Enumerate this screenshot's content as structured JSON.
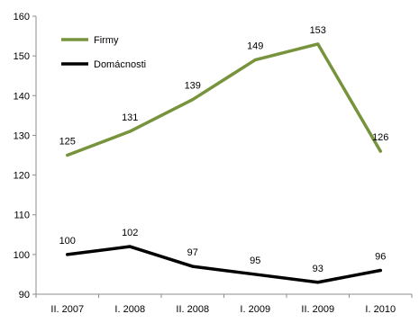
{
  "chart_data": {
    "type": "line",
    "categories": [
      "II. 2007",
      "I. 2008",
      "II. 2008",
      "I. 2009",
      "II. 2009",
      "I. 2010"
    ],
    "series": [
      {
        "name": "Firmy",
        "values": [
          125,
          131,
          139,
          149,
          153,
          126
        ],
        "color": "#77933c"
      },
      {
        "name": "Domácnosti",
        "values": [
          100,
          102,
          97,
          95,
          93,
          96
        ],
        "color": "#000000"
      }
    ],
    "ylim": [
      90,
      160
    ],
    "yticks": [
      90,
      100,
      110,
      120,
      130,
      140,
      150,
      160
    ],
    "grid": false,
    "legend": "top-left",
    "data_labels": true
  }
}
